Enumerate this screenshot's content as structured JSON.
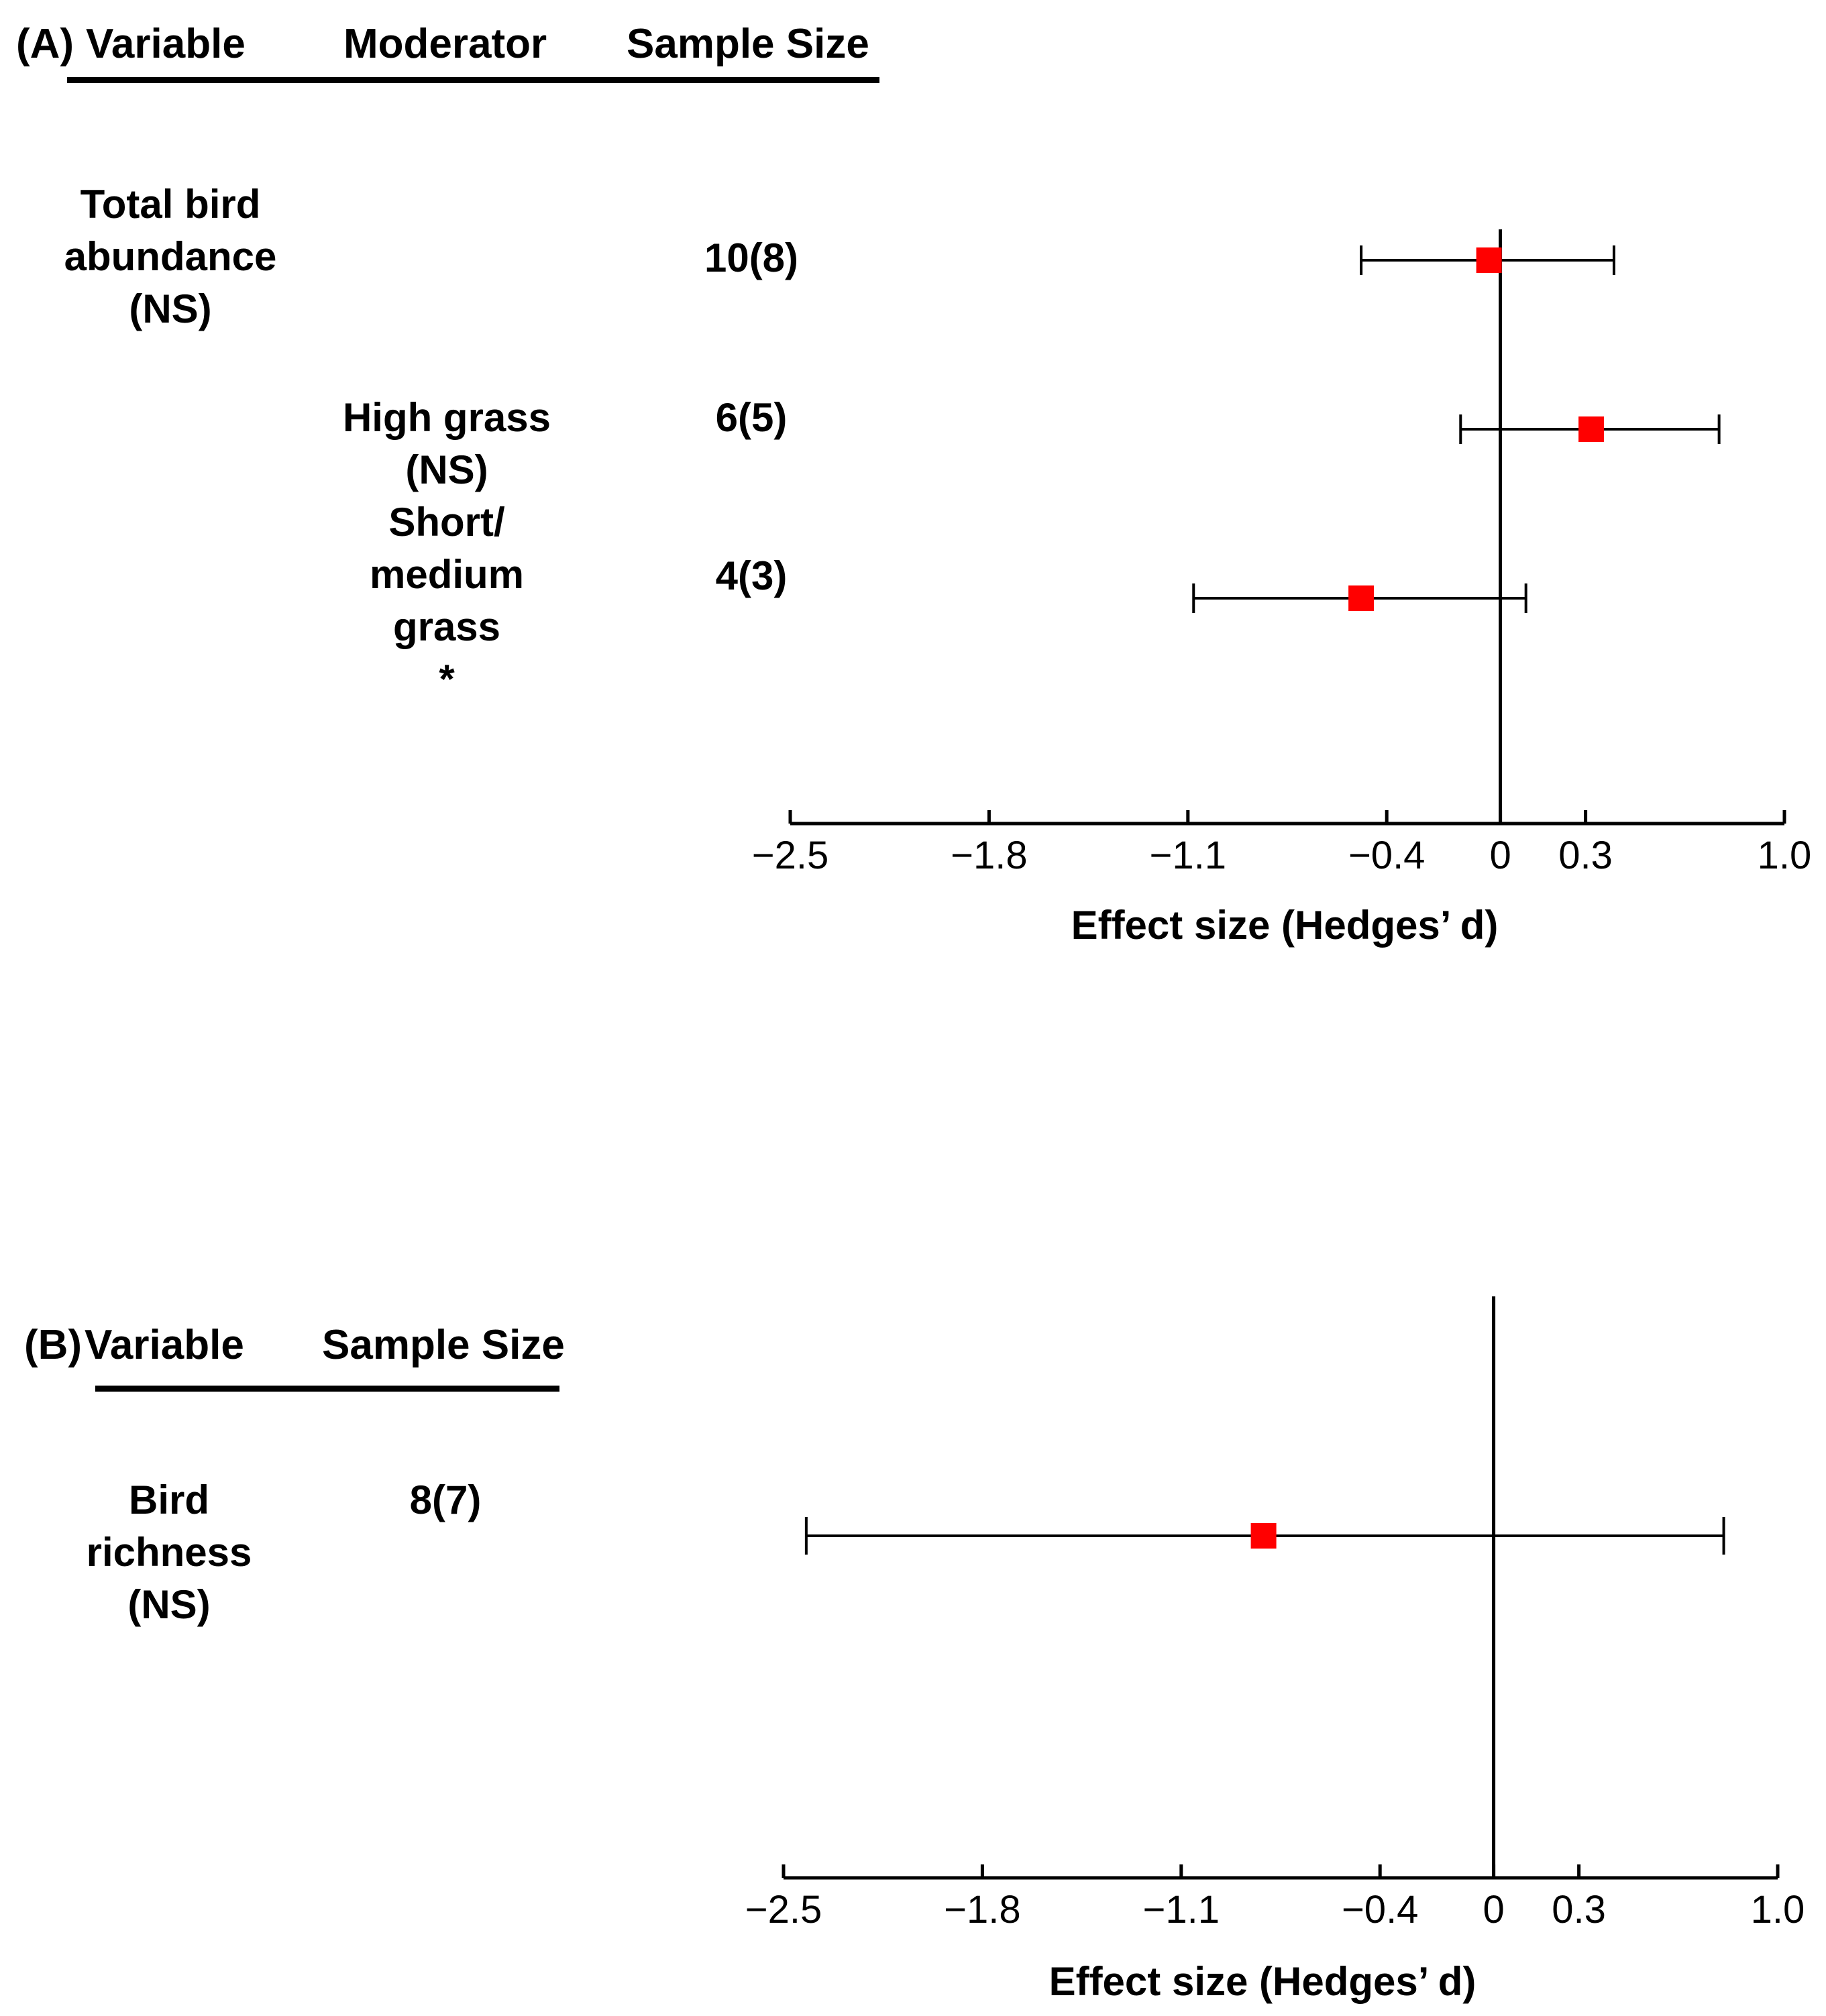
{
  "colors": {
    "marker": "#ff0000",
    "line": "#000000"
  },
  "panelA": {
    "label": "(A)",
    "headers": {
      "variable": "Variable",
      "moderator": "Moderator",
      "sample_size": "Sample Size"
    },
    "rows": [
      {
        "variable": "Total bird\nabundance\n(NS)",
        "moderator": "",
        "sample_size": "10(8)"
      },
      {
        "variable": "",
        "moderator": "High grass\n(NS)",
        "sample_size": "6(5)"
      },
      {
        "variable": "",
        "moderator": "Short/\nmedium\ngrass\n*",
        "sample_size": "4(3)"
      }
    ]
  },
  "panelB": {
    "label": "(B)",
    "headers": {
      "variable": "Variable",
      "sample_size": "Sample Size"
    },
    "rows": [
      {
        "variable": "Bird\nrichness\n(NS)",
        "sample_size": "8(7)"
      }
    ]
  },
  "chart_data": [
    {
      "type": "scatter",
      "subtype": "forest-plot",
      "panel": "A",
      "xlabel": "Effect size (Hedges’ d)",
      "ylabel": "",
      "xlim": [
        -2.5,
        1.0
      ],
      "xticks": [
        -2.5,
        -1.8,
        -1.1,
        -0.4,
        0,
        0.3,
        1.0
      ],
      "xtick_labels": [
        "−2.5",
        "−1.8",
        "−1.1",
        "−0.4",
        "0",
        "0.3",
        "1.0"
      ],
      "reference_line": 0,
      "points": [
        {
          "label": "Total bird abundance",
          "estimate": -0.04,
          "ci_low": -0.49,
          "ci_high": 0.4
        },
        {
          "label": "High grass",
          "estimate": 0.32,
          "ci_low": -0.14,
          "ci_high": 0.77
        },
        {
          "label": "Short/medium grass",
          "estimate": -0.49,
          "ci_low": -1.08,
          "ci_high": 0.09
        }
      ]
    },
    {
      "type": "scatter",
      "subtype": "forest-plot",
      "panel": "B",
      "xlabel": "Effect size (Hedges’ d)",
      "ylabel": "",
      "xlim": [
        -2.5,
        1.0
      ],
      "xticks": [
        -2.5,
        -1.8,
        -1.1,
        -0.4,
        0,
        0.3,
        1.0
      ],
      "xtick_labels": [
        "−2.5",
        "−1.8",
        "−1.1",
        "−0.4",
        "0",
        "0.3",
        "1.0"
      ],
      "reference_line": 0,
      "points": [
        {
          "label": "Bird richness",
          "estimate": -0.81,
          "ci_low": -2.42,
          "ci_high": 0.81
        }
      ]
    }
  ]
}
